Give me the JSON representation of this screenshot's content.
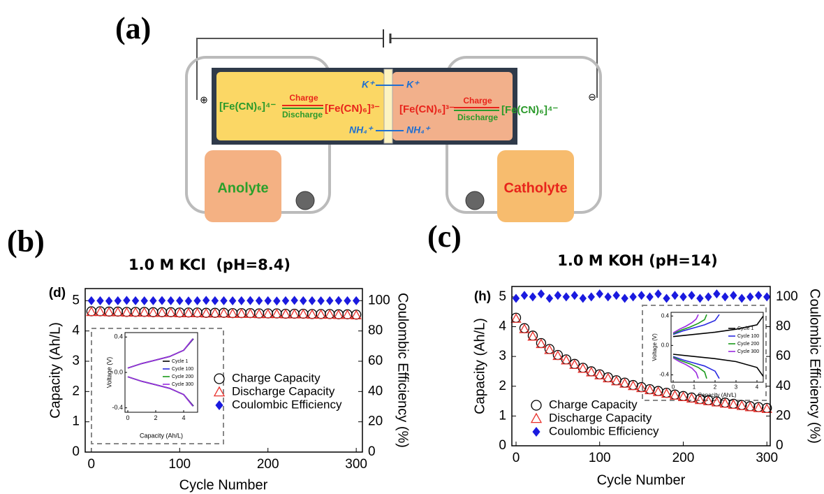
{
  "diagram": {
    "label": "(a)",
    "left_cell": {
      "reactant": "[Fe(CN)₆]⁴⁻",
      "forward": "Charge",
      "backward": "Discharge",
      "product": "[Fe(CN)₆]³⁻"
    },
    "right_cell": {
      "reactant": "[Fe(CN)₆]³⁻",
      "forward": "Charge",
      "backward": "Discharge",
      "product": "[Fe(CN)₆]⁴⁻"
    },
    "ions": {
      "top_left": "K⁺",
      "top_right": "K⁺",
      "bottom_left": "NH₄⁺",
      "bottom_right": "NH₄⁺"
    },
    "tanks": {
      "left": "Anolyte",
      "right": "Catholyte"
    },
    "electrodes": {
      "positive": "⊕",
      "negative": "⊖"
    }
  },
  "chart_data": [
    {
      "type": "scatter",
      "panel_label": "(b)",
      "title": "1.0 M KCl  (pH=8.4)",
      "label": "(d)",
      "x_label": "Cycle Number",
      "y_label": "Capacity (Ah/L)",
      "y2_label": "Coulombic Efficiency (%)",
      "xlim": [
        -7,
        307
      ],
      "ylim": [
        0,
        5.4
      ],
      "y2lim": [
        0,
        108
      ],
      "xticks": [
        0,
        100,
        200,
        300
      ],
      "yticks": [
        0,
        1,
        2,
        3,
        4,
        5
      ],
      "y2ticks": [
        0,
        20,
        40,
        60,
        80,
        100
      ],
      "legend": "center right",
      "x": [
        0,
        10,
        20,
        30,
        40,
        50,
        60,
        70,
        80,
        90,
        100,
        110,
        120,
        130,
        140,
        150,
        160,
        170,
        180,
        190,
        200,
        210,
        220,
        230,
        240,
        250,
        260,
        270,
        280,
        290,
        300
      ],
      "series": [
        {
          "name": "Charge Capacity",
          "color": "#000000",
          "marker": "circle",
          "values": [
            4.65,
            4.65,
            4.64,
            4.64,
            4.63,
            4.63,
            4.63,
            4.62,
            4.62,
            4.62,
            4.61,
            4.61,
            4.61,
            4.6,
            4.6,
            4.6,
            4.59,
            4.59,
            4.59,
            4.58,
            4.58,
            4.58,
            4.57,
            4.57,
            4.57,
            4.56,
            4.56,
            4.56,
            4.55,
            4.55,
            4.54
          ]
        },
        {
          "name": "Discharge Capacity",
          "color": "#e8302b",
          "marker": "triangle",
          "values": [
            4.63,
            4.63,
            4.62,
            4.62,
            4.61,
            4.61,
            4.61,
            4.6,
            4.6,
            4.6,
            4.59,
            4.59,
            4.59,
            4.58,
            4.58,
            4.58,
            4.57,
            4.57,
            4.57,
            4.56,
            4.56,
            4.56,
            4.55,
            4.55,
            4.55,
            4.54,
            4.54,
            4.54,
            4.53,
            4.53,
            4.52
          ]
        },
        {
          "name": "Coulombic Efficiency",
          "color": "#1a1adf",
          "marker": "diamond",
          "axis": "y2",
          "values": [
            100,
            100,
            99.8,
            100,
            100.2,
            100,
            99.9,
            100,
            100.1,
            100,
            100,
            99.8,
            100,
            100.2,
            100,
            100,
            99.9,
            100,
            100.1,
            100,
            100,
            99.8,
            100,
            100.2,
            100,
            100,
            99.9,
            100,
            100.1,
            100,
            100
          ]
        }
      ]
    },
    {
      "type": "scatter",
      "panel_label": "(c)",
      "title": "1.0 M KOH (pH=14)",
      "label": "(h)",
      "x_label": "Cycle Number",
      "y_label": "Capacity (Ah/L)",
      "y2_label": "Coulombic Efficiency (%)",
      "xlim": [
        -5,
        304
      ],
      "ylim": [
        0,
        5.35
      ],
      "y2lim": [
        0,
        107
      ],
      "xticks": [
        0,
        100,
        200,
        300
      ],
      "yticks": [
        0,
        1,
        2,
        3,
        4,
        5
      ],
      "y2ticks": [
        0,
        20,
        40,
        60,
        80,
        100
      ],
      "legend": "lower left",
      "x": [
        0,
        10,
        20,
        30,
        40,
        50,
        60,
        70,
        80,
        90,
        100,
        110,
        120,
        130,
        140,
        150,
        160,
        170,
        180,
        190,
        200,
        210,
        220,
        230,
        240,
        250,
        260,
        270,
        280,
        290,
        300
      ],
      "series": [
        {
          "name": "Charge Capacity",
          "color": "#000000",
          "marker": "circle",
          "values": [
            4.3,
            3.95,
            3.7,
            3.45,
            3.25,
            3.05,
            2.9,
            2.75,
            2.62,
            2.5,
            2.4,
            2.3,
            2.2,
            2.12,
            2.04,
            1.97,
            1.9,
            1.84,
            1.78,
            1.72,
            1.67,
            1.62,
            1.57,
            1.53,
            1.49,
            1.45,
            1.41,
            1.37,
            1.33,
            1.3,
            1.27
          ]
        },
        {
          "name": "Discharge Capacity",
          "color": "#e8302b",
          "marker": "triangle",
          "values": [
            4.27,
            3.92,
            3.67,
            3.42,
            3.22,
            3.02,
            2.87,
            2.72,
            2.59,
            2.47,
            2.37,
            2.27,
            2.17,
            2.09,
            2.01,
            1.94,
            1.87,
            1.81,
            1.75,
            1.69,
            1.64,
            1.59,
            1.54,
            1.5,
            1.46,
            1.42,
            1.38,
            1.34,
            1.3,
            1.27,
            1.24
          ]
        },
        {
          "name": "Coulombic Efficiency",
          "color": "#1a1adf",
          "marker": "diamond",
          "axis": "y2",
          "values": [
            99,
            101,
            100,
            102,
            99,
            101,
            100,
            101,
            99,
            100,
            102,
            100,
            101,
            99,
            100,
            101,
            100,
            102,
            99,
            101,
            100,
            101,
            99,
            100,
            102,
            100,
            101,
            99,
            100,
            101,
            100
          ]
        }
      ]
    },
    {
      "type": "line",
      "x_label": "Capacity (Ah/L)",
      "y_label": "Voltage (V)",
      "xlim": [
        -0.2,
        5
      ],
      "ylim": [
        -0.45,
        0.45
      ],
      "xticks": [
        0,
        2,
        4
      ],
      "yticks": [
        -0.4,
        {
          "value": 0,
          "label": "0.0"
        },
        0.4
      ],
      "legend": "center right",
      "series": [
        {
          "name": "Cycle 1",
          "color": "#000000",
          "x": [
            0,
            1,
            2,
            3,
            4,
            4.7,
            null,
            0,
            1,
            2,
            3,
            4,
            4.7
          ],
          "values": [
            0.05,
            0.1,
            0.14,
            0.18,
            0.25,
            0.38,
            null,
            -0.05,
            -0.1,
            -0.14,
            -0.18,
            -0.25,
            -0.38
          ]
        },
        {
          "name": "Cycle 100",
          "color": "#2a2ae0",
          "x": [
            0,
            1,
            2,
            3,
            4,
            4.68,
            null,
            0,
            1,
            2,
            3,
            4,
            4.68
          ],
          "values": [
            0.05,
            0.1,
            0.14,
            0.18,
            0.25,
            0.38,
            null,
            -0.05,
            -0.1,
            -0.14,
            -0.18,
            -0.25,
            -0.38
          ]
        },
        {
          "name": "Cycle 200",
          "color": "#1a9a1a",
          "x": [
            0,
            1,
            2,
            3,
            4,
            4.66,
            null,
            0,
            1,
            2,
            3,
            4,
            4.66
          ],
          "values": [
            0.05,
            0.1,
            0.14,
            0.18,
            0.25,
            0.38,
            null,
            -0.05,
            -0.1,
            -0.14,
            -0.18,
            -0.25,
            -0.38
          ]
        },
        {
          "name": "Cycle 300",
          "color": "#9a2ae0",
          "x": [
            0,
            1,
            2,
            3,
            4,
            4.65,
            null,
            0,
            1,
            2,
            3,
            4,
            4.65
          ],
          "values": [
            0.05,
            0.1,
            0.14,
            0.18,
            0.25,
            0.38,
            null,
            -0.05,
            -0.1,
            -0.14,
            -0.18,
            -0.25,
            -0.38
          ]
        }
      ]
    },
    {
      "type": "line",
      "x_label": "Capacity (Ah/L)",
      "y_label": "Voltage (V)",
      "xlim": [
        -0.1,
        4.3
      ],
      "ylim": [
        -0.5,
        0.45
      ],
      "xticks": [
        0,
        1,
        2,
        3,
        4
      ],
      "yticks": [
        -0.4,
        {
          "value": 0,
          "label": "0.0"
        },
        0.4
      ],
      "legend": "upper right",
      "series": [
        {
          "name": "Cycle 1",
          "color": "#000000",
          "x": [
            0,
            1,
            2,
            3,
            4,
            4.3,
            null,
            0,
            1,
            2,
            3,
            4,
            4.3
          ],
          "values": [
            0.12,
            0.15,
            0.18,
            0.22,
            0.28,
            0.4,
            null,
            -0.12,
            -0.15,
            -0.18,
            -0.22,
            -0.3,
            -0.42
          ]
        },
        {
          "name": "Cycle 100",
          "color": "#2a2ae0",
          "x": [
            0,
            0.5,
            1,
            1.5,
            2,
            2.2,
            null,
            0,
            0.5,
            1,
            1.5,
            2,
            2.2
          ],
          "values": [
            0.15,
            0.2,
            0.24,
            0.28,
            0.34,
            0.42,
            null,
            -0.15,
            -0.2,
            -0.24,
            -0.28,
            -0.35,
            -0.45
          ]
        },
        {
          "name": "Cycle 200",
          "color": "#1a9a1a",
          "x": [
            0,
            0.4,
            0.8,
            1.2,
            1.5,
            1.6,
            null,
            0,
            0.4,
            0.8,
            1.2,
            1.5,
            1.6
          ],
          "values": [
            0.16,
            0.21,
            0.25,
            0.3,
            0.35,
            0.42,
            null,
            -0.16,
            -0.21,
            -0.25,
            -0.3,
            -0.36,
            -0.45
          ]
        },
        {
          "name": "Cycle 300",
          "color": "#9a2ae0",
          "x": [
            0,
            0.3,
            0.6,
            0.9,
            1.1,
            1.2,
            null,
            0,
            0.3,
            0.6,
            0.9,
            1.1,
            1.2
          ],
          "values": [
            0.17,
            0.22,
            0.26,
            0.31,
            0.36,
            0.42,
            null,
            -0.17,
            -0.22,
            -0.26,
            -0.31,
            -0.37,
            -0.45
          ]
        }
      ]
    }
  ]
}
